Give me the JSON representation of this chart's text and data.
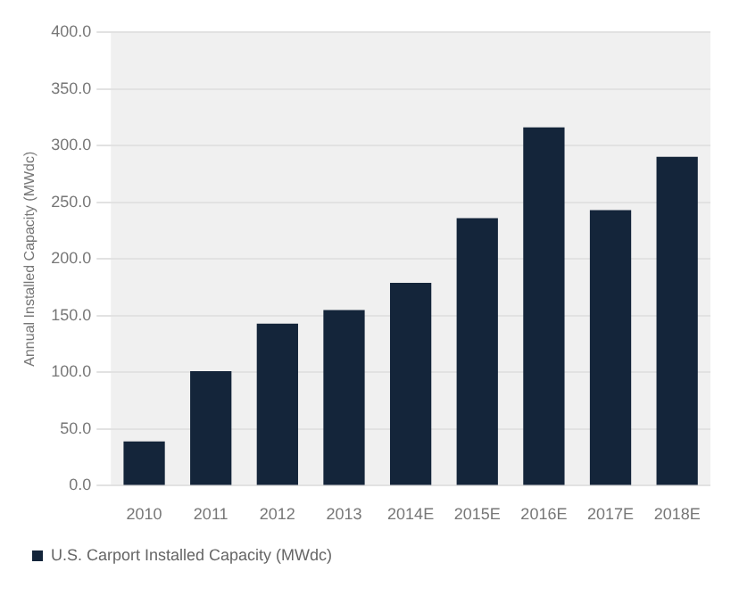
{
  "chart_data": {
    "type": "bar",
    "ylabel": "Annual Installed Capacity (MWdc)",
    "categories": [
      "2010",
      "2011",
      "2012",
      "2013",
      "2014E",
      "2015E",
      "2016E",
      "2017E",
      "2018E"
    ],
    "series": [
      {
        "name": "U.S. Carport Installed Capacity (MWdc)",
        "color": "#14253a",
        "values": [
          39,
          101,
          143,
          155,
          179,
          236,
          316,
          243,
          290
        ]
      }
    ],
    "ylim": [
      0,
      400
    ],
    "yticks": [
      {
        "value": 0,
        "label": "0.0"
      },
      {
        "value": 50,
        "label": "50.0"
      },
      {
        "value": 100,
        "label": "100.0"
      },
      {
        "value": 150,
        "label": "150.0"
      },
      {
        "value": 200,
        "label": "200.0"
      },
      {
        "value": 250,
        "label": "250.0"
      },
      {
        "value": 300,
        "label": "300.0"
      },
      {
        "value": 350,
        "label": "350.0"
      },
      {
        "value": 400,
        "label": "400.0"
      }
    ],
    "grid": "y",
    "legend": "bottom"
  }
}
